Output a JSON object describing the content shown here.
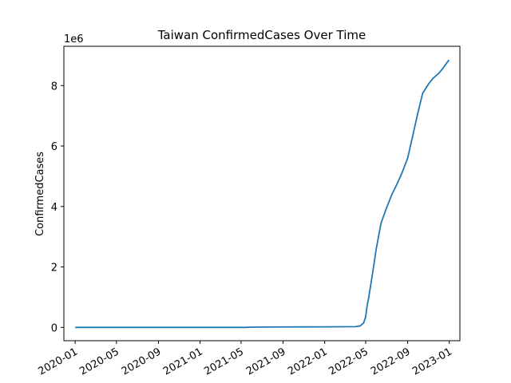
{
  "chart_data": {
    "type": "line",
    "title": "Taiwan  ConfirmedCases Over Time",
    "xlabel": "",
    "ylabel": "ConfirmedCases",
    "y_scale_label": "1e6",
    "x_ticks": [
      "2020-01",
      "2020-05",
      "2020-09",
      "2021-01",
      "2021-05",
      "2021-09",
      "2022-01",
      "2022-05",
      "2022-09",
      "2023-01"
    ],
    "y_ticks": [
      0,
      2,
      4,
      6,
      8
    ],
    "xlim": [
      "2019-11-29",
      "2023-02-01"
    ],
    "ylim": [
      -0.44,
      9.3
    ],
    "grid": false,
    "legend": "none",
    "line_color": "#1f77b4",
    "series": [
      {
        "x": [
          "2020-01-01",
          "2020-06-01",
          "2021-01-01",
          "2021-05-15",
          "2021-06-01",
          "2021-09-01",
          "2022-01-01",
          "2022-04-01",
          "2022-04-15",
          "2022-04-25",
          "2022-05-01",
          "2022-05-05",
          "2022-05-10",
          "2022-05-20",
          "2022-06-01",
          "2022-06-15",
          "2022-07-01",
          "2022-07-15",
          "2022-08-01",
          "2022-08-15",
          "2022-09-01",
          "2022-09-15",
          "2022-10-01",
          "2022-10-15",
          "2022-11-01",
          "2022-11-15",
          "2022-12-01",
          "2022-12-15",
          "2022-12-31"
        ],
        "y": [
          0.0,
          0.0,
          0.0,
          0.001,
          0.008,
          0.016,
          0.018,
          0.025,
          0.05,
          0.15,
          0.35,
          0.7,
          1.0,
          1.7,
          2.6,
          3.45,
          3.95,
          4.35,
          4.75,
          5.1,
          5.6,
          6.3,
          7.1,
          7.75,
          8.05,
          8.25,
          8.4,
          8.6,
          8.85
        ]
      }
    ]
  }
}
